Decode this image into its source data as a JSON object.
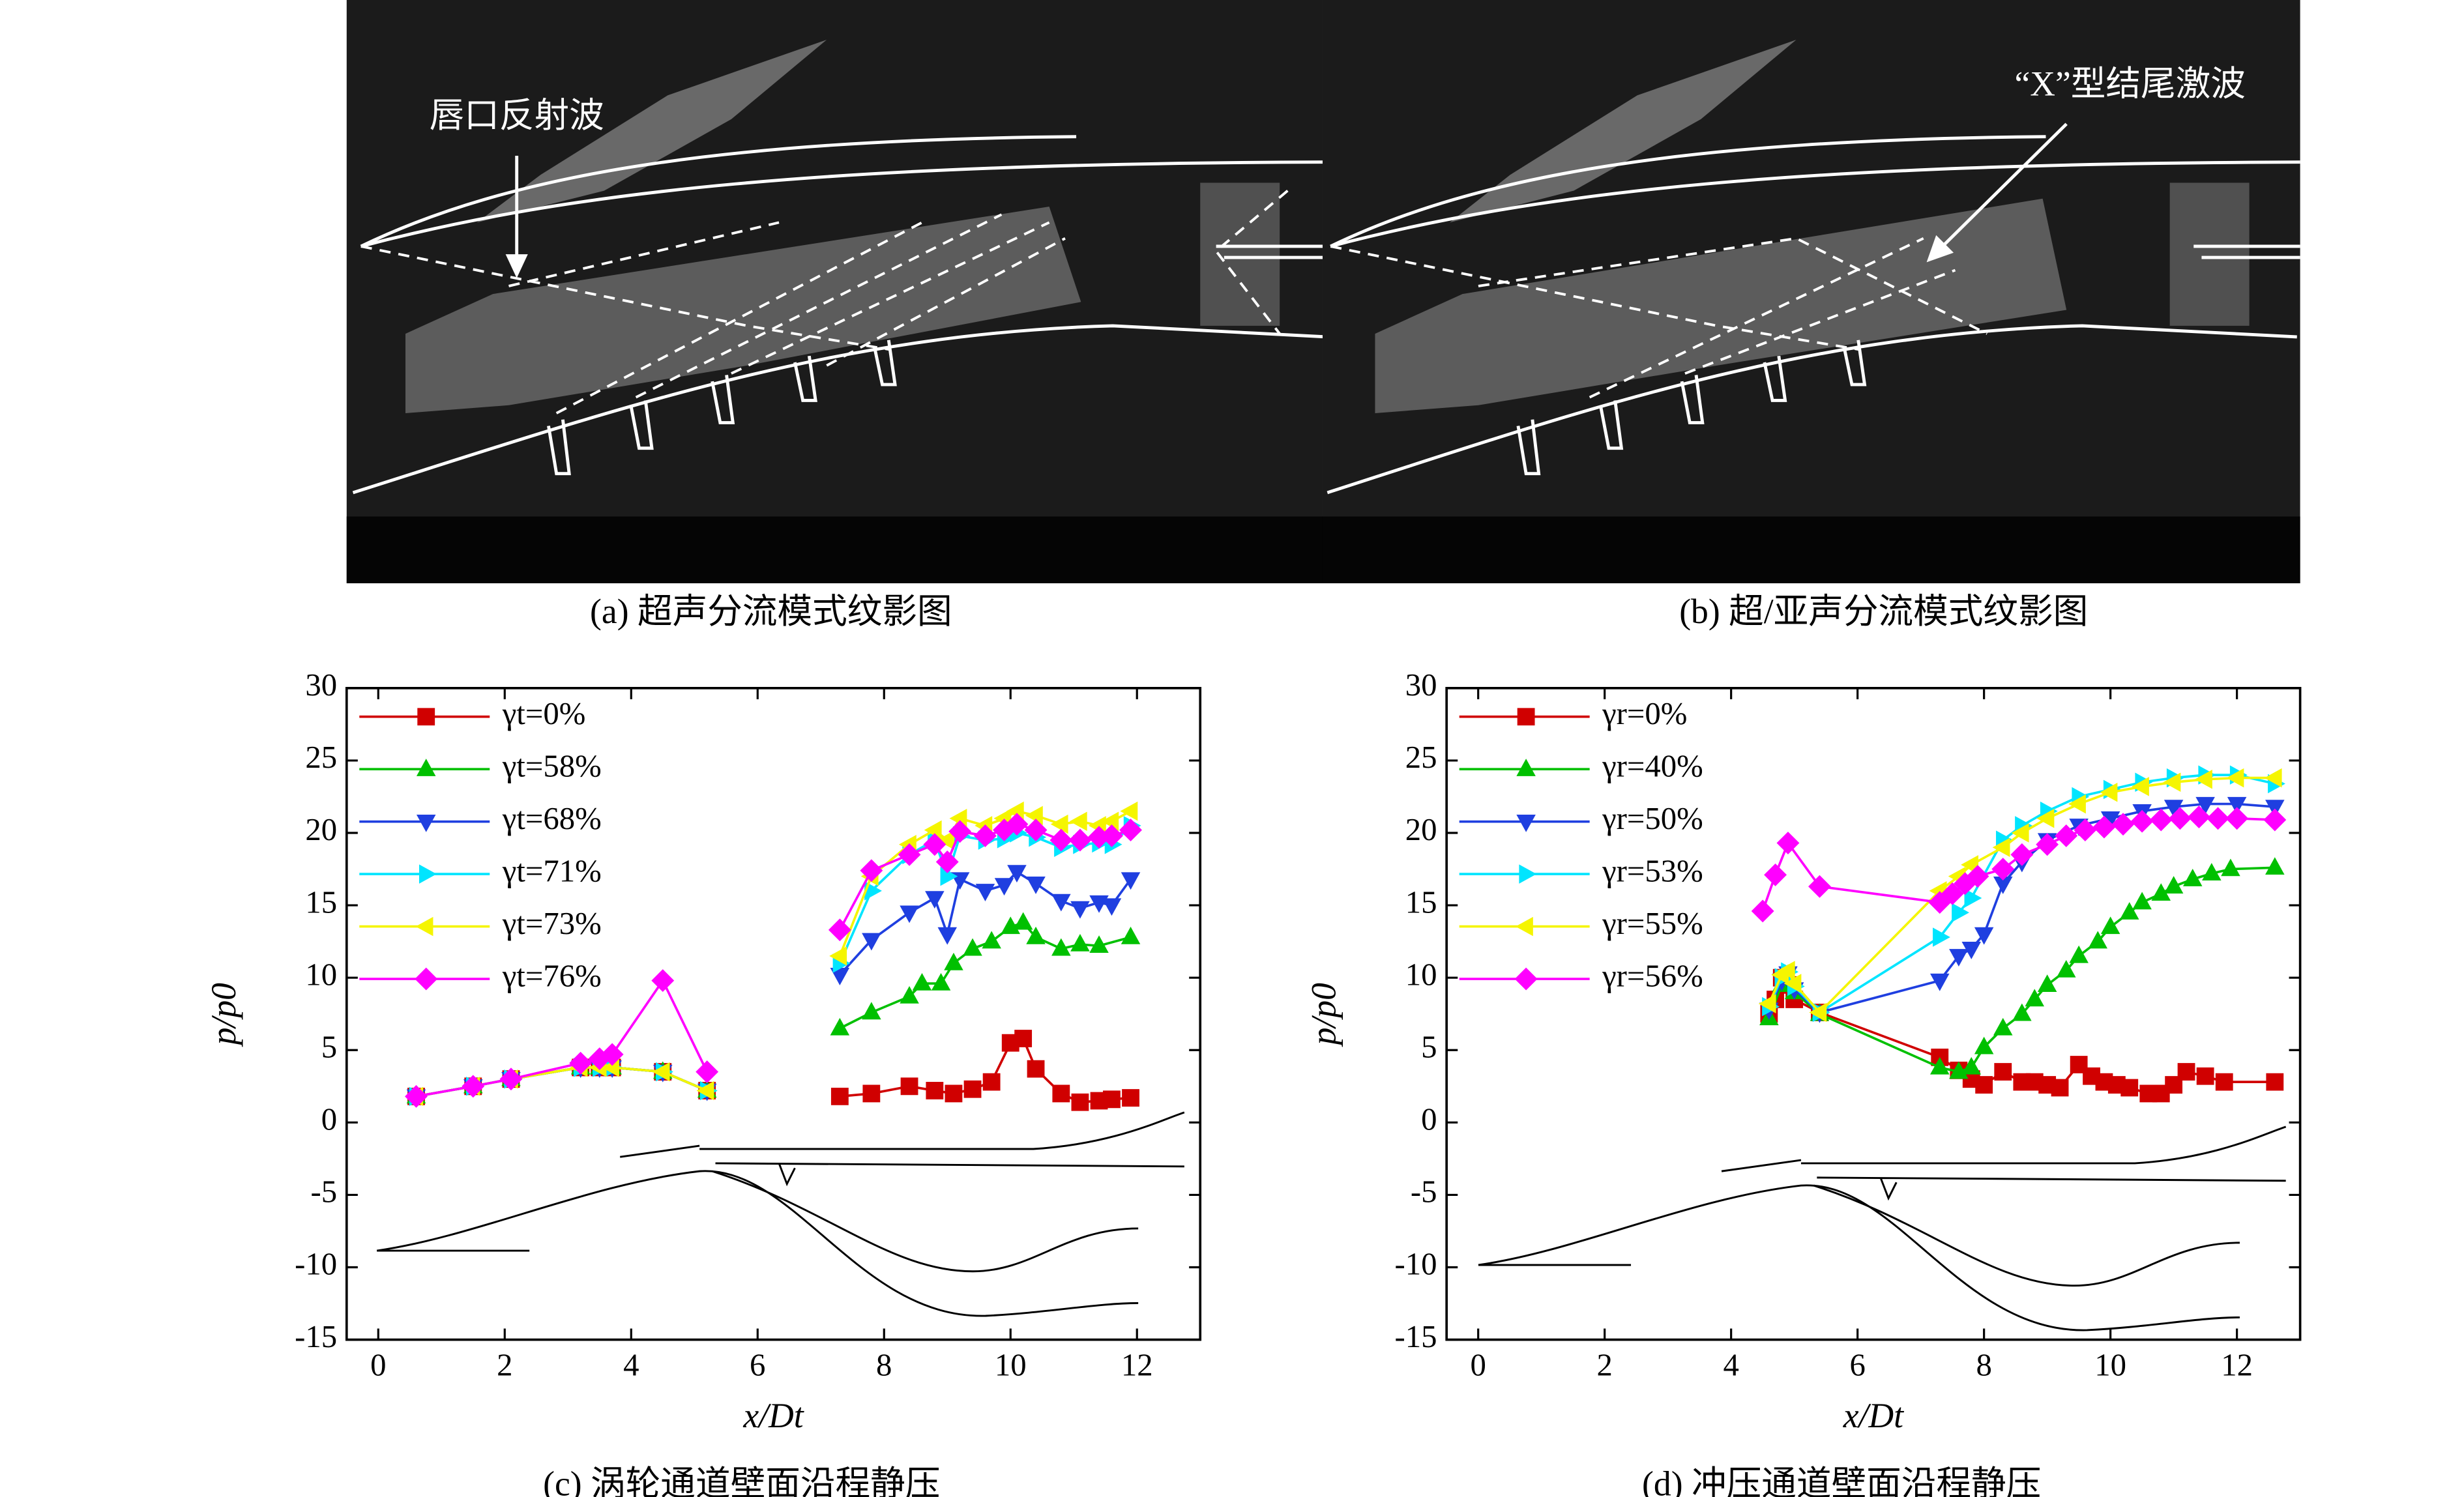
{
  "images": [
    {
      "caption": "(a) 超声分流模式纹影图",
      "annotation": "唇口反射波"
    },
    {
      "caption": "(b) 超/亚声分流模式纹影图",
      "annotation": "“X”型结尾激波"
    }
  ],
  "chart_data": [
    {
      "type": "line",
      "caption": "(c) 涡轮通道壁面沿程静压",
      "xlabel": "x/Dt",
      "ylabel": "p/p0",
      "xlim": [
        -0.5,
        13
      ],
      "ylim": [
        -15,
        30
      ],
      "xticks": [
        0,
        2,
        4,
        6,
        8,
        10,
        12
      ],
      "yticks": [
        -15,
        -10,
        -5,
        0,
        5,
        10,
        15,
        20,
        25,
        30
      ],
      "legend": "upper left",
      "series": [
        {
          "name": "γt=0%",
          "color": "#d00000",
          "marker": "square",
          "x": [
            0.6,
            1.5,
            2.1,
            3.2,
            3.5,
            3.7,
            4.5,
            5.2,
            6.2,
            7.3,
            7.8,
            8.4,
            8.8,
            9.1,
            9.4,
            9.7,
            10.0,
            10.2,
            10.4,
            10.8,
            11.1,
            11.4,
            11.6,
            11.9
          ],
          "values": [
            1.8,
            2.5,
            3.0,
            3.8,
            3.8,
            3.8,
            3.5,
            2.2,
            null,
            1.8,
            2.0,
            2.5,
            2.2,
            2.0,
            2.3,
            2.8,
            5.5,
            5.8,
            3.7,
            2.0,
            1.4,
            1.5,
            1.6,
            1.7
          ]
        },
        {
          "name": "γt=58%",
          "color": "#00c000",
          "marker": "triangle-up",
          "x": [
            0.6,
            1.5,
            2.1,
            3.2,
            3.5,
            3.7,
            4.5,
            5.2,
            6.2,
            7.3,
            7.8,
            8.4,
            8.6,
            8.9,
            9.1,
            9.4,
            9.7,
            10.0,
            10.2,
            10.4,
            10.8,
            11.1,
            11.4,
            11.9
          ],
          "values": [
            1.8,
            2.5,
            3.0,
            3.8,
            3.8,
            3.8,
            3.5,
            2.2,
            null,
            6.5,
            7.6,
            8.7,
            9.6,
            9.6,
            11.0,
            12.0,
            12.5,
            13.5,
            13.8,
            12.8,
            12.0,
            12.3,
            12.2,
            12.8
          ]
        },
        {
          "name": "γt=68%",
          "color": "#1f3fe0",
          "marker": "triangle-down",
          "x": [
            0.6,
            1.5,
            2.1,
            3.2,
            3.5,
            3.7,
            4.5,
            5.2,
            6.2,
            7.3,
            7.8,
            8.4,
            8.8,
            9.0,
            9.2,
            9.6,
            9.9,
            10.1,
            10.4,
            10.8,
            11.1,
            11.4,
            11.6,
            11.9
          ],
          "values": [
            1.8,
            2.5,
            3.0,
            3.8,
            3.8,
            3.8,
            3.5,
            2.2,
            null,
            10.2,
            12.6,
            14.5,
            15.5,
            13.0,
            16.8,
            16.0,
            16.4,
            17.3,
            16.5,
            15.3,
            14.8,
            15.2,
            15.0,
            16.8
          ]
        },
        {
          "name": "γt=71%",
          "color": "#00e5ff",
          "marker": "triangle-right",
          "x": [
            0.6,
            1.5,
            2.1,
            3.2,
            3.5,
            3.7,
            4.5,
            5.2,
            6.2,
            7.3,
            7.8,
            8.4,
            8.8,
            9.0,
            9.2,
            9.6,
            9.9,
            10.1,
            10.4,
            10.8,
            11.1,
            11.4,
            11.6,
            11.9
          ],
          "values": [
            1.8,
            2.5,
            3.0,
            3.8,
            3.8,
            3.8,
            3.5,
            2.2,
            null,
            11.0,
            16.0,
            18.5,
            19.5,
            17.0,
            19.8,
            19.5,
            19.6,
            20.0,
            19.7,
            19.0,
            19.2,
            19.3,
            19.2,
            20.5
          ]
        },
        {
          "name": "γt=73%",
          "color": "#f5f500",
          "marker": "triangle-left",
          "x": [
            0.6,
            1.5,
            2.1,
            3.2,
            3.5,
            3.7,
            4.5,
            5.2,
            6.2,
            7.3,
            7.8,
            8.4,
            8.8,
            9.0,
            9.2,
            9.6,
            9.9,
            10.1,
            10.4,
            10.8,
            11.1,
            11.4,
            11.6,
            11.9
          ],
          "values": [
            1.8,
            2.5,
            3.0,
            3.8,
            3.8,
            3.8,
            3.5,
            2.2,
            null,
            11.5,
            17.0,
            19.2,
            20.2,
            19.5,
            21.0,
            20.5,
            21.0,
            21.5,
            21.2,
            20.6,
            20.8,
            20.5,
            20.8,
            21.5
          ]
        },
        {
          "name": "γt=76%",
          "color": "#ff00ff",
          "marker": "diamond",
          "x": [
            0.6,
            1.5,
            2.1,
            3.2,
            3.5,
            3.7,
            4.5,
            5.2,
            6.2,
            7.3,
            7.8,
            8.4,
            8.8,
            9.0,
            9.2,
            9.6,
            9.9,
            10.1,
            10.4,
            10.8,
            11.1,
            11.4,
            11.6,
            11.9
          ],
          "values": [
            1.8,
            2.5,
            3.0,
            4.1,
            4.4,
            4.7,
            9.8,
            3.5,
            null,
            13.3,
            17.4,
            18.5,
            19.2,
            18.0,
            20.1,
            19.8,
            20.2,
            20.6,
            20.2,
            19.5,
            19.5,
            19.7,
            19.8,
            20.2
          ]
        }
      ]
    },
    {
      "type": "line",
      "caption": "(d) 冲压通道壁面沿程静压",
      "xlabel": "x/Dt",
      "ylabel": "p/p0",
      "xlim": [
        -0.5,
        13
      ],
      "ylim": [
        -15,
        30
      ],
      "xticks": [
        0,
        2,
        4,
        6,
        8,
        10,
        12
      ],
      "yticks": [
        -15,
        -10,
        -5,
        0,
        5,
        10,
        15,
        20,
        25,
        30
      ],
      "legend": "upper left",
      "series": [
        {
          "name": "γr=0%",
          "color": "#d00000",
          "marker": "square",
          "x": [
            4.6,
            4.7,
            4.8,
            4.9,
            5.0,
            5.4,
            7.3,
            7.6,
            7.8,
            8.0,
            8.3,
            8.6,
            8.8,
            9.0,
            9.2,
            9.5,
            9.7,
            9.9,
            10.1,
            10.3,
            10.6,
            10.8,
            11.0,
            11.2,
            11.5,
            11.8,
            12.6
          ],
          "values": [
            7.5,
            8.5,
            10,
            9.5,
            8.5,
            7.6,
            4.5,
            3.6,
            3.0,
            2.6,
            3.5,
            2.8,
            2.8,
            2.6,
            2.4,
            4.0,
            3.2,
            2.8,
            2.6,
            2.4,
            2.0,
            2.0,
            2.6,
            3.5,
            3.2,
            2.8,
            2.8
          ]
        },
        {
          "name": "γr=40%",
          "color": "#00c000",
          "marker": "triangle-up",
          "x": [
            4.6,
            4.8,
            4.9,
            5.0,
            5.4,
            7.3,
            7.6,
            7.8,
            8.0,
            8.3,
            8.6,
            8.8,
            9.0,
            9.3,
            9.5,
            9.8,
            10.0,
            10.3,
            10.5,
            10.8,
            11.0,
            11.3,
            11.6,
            11.9,
            12.6
          ],
          "values": [
            7.2,
            9.5,
            10.2,
            9.0,
            7.5,
            3.8,
            3.5,
            3.8,
            5.2,
            6.5,
            7.5,
            8.5,
            9.5,
            10.5,
            11.5,
            12.5,
            13.5,
            14.5,
            15.2,
            15.8,
            16.3,
            16.8,
            17.2,
            17.5,
            17.6
          ]
        },
        {
          "name": "γr=50%",
          "color": "#1f3fe0",
          "marker": "triangle-down",
          "x": [
            4.6,
            4.8,
            4.9,
            5.0,
            5.4,
            7.3,
            7.6,
            7.8,
            8.0,
            8.3,
            8.6,
            9.0,
            9.5,
            10.0,
            10.5,
            11.0,
            11.5,
            12.0,
            12.6
          ],
          "values": [
            7.8,
            9.8,
            10.3,
            9.2,
            7.6,
            9.8,
            11.5,
            12.0,
            13.0,
            16.5,
            18.0,
            19.5,
            20.5,
            21.0,
            21.5,
            21.8,
            22.0,
            22.0,
            21.8
          ]
        },
        {
          "name": "γr=53%",
          "color": "#00e5ff",
          "marker": "triangle-right",
          "x": [
            4.6,
            4.8,
            4.9,
            5.0,
            5.4,
            7.3,
            7.6,
            7.8,
            8.3,
            8.6,
            9.0,
            9.5,
            10.0,
            10.5,
            11.0,
            11.5,
            12.0,
            12.6
          ],
          "values": [
            8.0,
            10.0,
            10.4,
            9.4,
            7.6,
            12.8,
            14.5,
            15.5,
            19.5,
            20.5,
            21.5,
            22.5,
            23.0,
            23.5,
            23.8,
            24.0,
            24.0,
            23.4
          ]
        },
        {
          "name": "γr=55%",
          "color": "#f5f500",
          "marker": "triangle-left",
          "x": [
            4.6,
            4.8,
            4.9,
            5.0,
            5.4,
            7.3,
            7.6,
            7.8,
            8.3,
            8.6,
            9.0,
            9.5,
            10.0,
            10.5,
            11.0,
            11.5,
            12.0,
            12.6
          ],
          "values": [
            8.2,
            10.2,
            10.5,
            9.6,
            7.6,
            16.0,
            17.0,
            17.8,
            19.0,
            20.0,
            21.0,
            22.0,
            22.8,
            23.2,
            23.5,
            23.7,
            23.8,
            23.8
          ]
        },
        {
          "name": "γr=56%",
          "color": "#ff00ff",
          "marker": "diamond",
          "x": [
            4.5,
            4.7,
            4.9,
            5.4,
            7.3,
            7.5,
            7.7,
            7.9,
            8.3,
            8.6,
            9.0,
            9.3,
            9.6,
            9.9,
            10.2,
            10.5,
            10.8,
            11.1,
            11.4,
            11.7,
            12.0,
            12.6
          ],
          "values": [
            14.6,
            17.1,
            19.3,
            16.3,
            15.2,
            15.8,
            16.5,
            17.0,
            17.5,
            18.5,
            19.2,
            19.8,
            20.2,
            20.4,
            20.6,
            20.8,
            20.9,
            21.0,
            21.1,
            21.0,
            21.0,
            20.9
          ]
        }
      ]
    }
  ]
}
